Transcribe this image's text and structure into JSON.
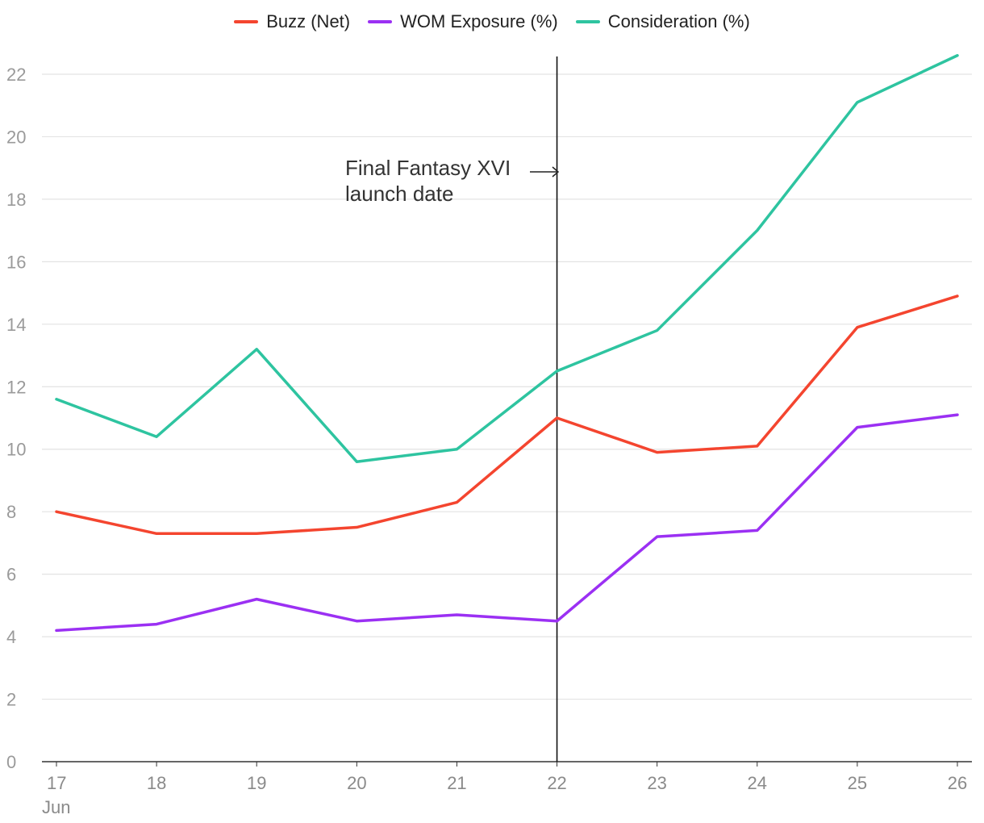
{
  "chart_data": {
    "type": "line",
    "categories": [
      "17",
      "18",
      "19",
      "20",
      "21",
      "22",
      "23",
      "24",
      "25",
      "26"
    ],
    "first_tick_sublabel": "Jun",
    "series": [
      {
        "name": "Buzz (Net)",
        "color": "#f4452f",
        "values": [
          8.0,
          7.3,
          7.3,
          7.5,
          8.3,
          11.0,
          9.9,
          10.1,
          13.9,
          14.9
        ]
      },
      {
        "name": "WOM Exposure (%)",
        "color": "#9b30f3",
        "values": [
          4.2,
          4.4,
          5.2,
          4.5,
          4.7,
          4.5,
          7.2,
          7.4,
          10.7,
          11.1
        ]
      },
      {
        "name": "Consideration (%)",
        "color": "#2ec4a0",
        "values": [
          11.6,
          10.4,
          13.2,
          9.6,
          10.0,
          12.5,
          13.8,
          17.0,
          21.1,
          22.6
        ]
      }
    ],
    "ylim": [
      0,
      22
    ],
    "yticks": [
      "0",
      "2",
      "4",
      "6",
      "8",
      "10",
      "12",
      "14",
      "16",
      "18",
      "20",
      "22"
    ],
    "grid": true,
    "legend_position": "top-center",
    "annotation": {
      "line1": "Final Fantasy XVI",
      "line2": "launch date",
      "at_category": "22"
    },
    "title": "",
    "xlabel": "",
    "ylabel": ""
  }
}
